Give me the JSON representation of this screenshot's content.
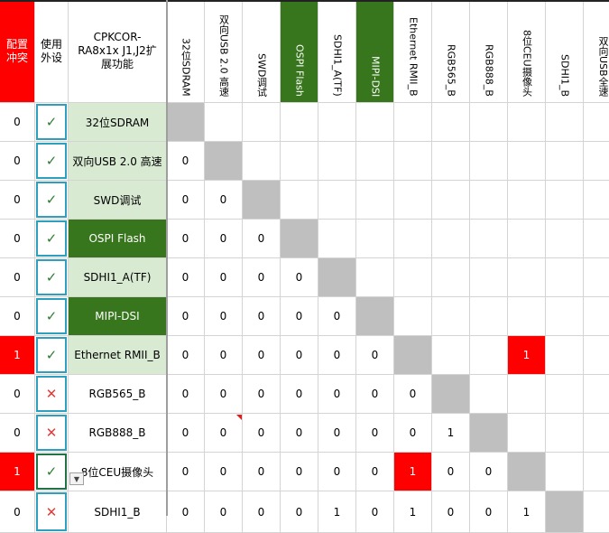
{
  "header": {
    "conflict": "配置冲突",
    "use": "使用外设",
    "function": "CPKCOR-RA8x1x J1,J2扩展功能"
  },
  "columns": [
    "32位SDRAM",
    "双向USB 2.0 高速",
    "SWD调试",
    "OSPI Flash",
    "SDHI1_A(TF)",
    "MIPI-DSI",
    "Ethernet RMII_B",
    "RGB565_B",
    "RGB888_B",
    "8位CEU摄像头",
    "SDHI1_B",
    "双向USB全速"
  ],
  "rows": [
    {
      "conflict": "0",
      "use": "✓",
      "name": "32位SDRAM",
      "cells": [
        "",
        "",
        "",
        "",
        "",
        "",
        "",
        "",
        "",
        "",
        "",
        ""
      ]
    },
    {
      "conflict": "0",
      "use": "✓",
      "name": "双向USB 2.0 高速",
      "cells": [
        "0",
        "",
        "",
        "",
        "",
        "",
        "",
        "",
        "",
        "",
        "",
        ""
      ]
    },
    {
      "conflict": "0",
      "use": "✓",
      "name": "SWD调试",
      "cells": [
        "0",
        "0",
        "",
        "",
        "",
        "",
        "",
        "",
        "",
        "",
        "",
        ""
      ]
    },
    {
      "conflict": "0",
      "use": "✓",
      "name": "OSPI Flash",
      "cells": [
        "0",
        "0",
        "0",
        "",
        "",
        "",
        "",
        "",
        "",
        "",
        "",
        ""
      ]
    },
    {
      "conflict": "0",
      "use": "✓",
      "name": "SDHI1_A(TF)",
      "cells": [
        "0",
        "0",
        "0",
        "0",
        "",
        "",
        "",
        "",
        "",
        "",
        "",
        ""
      ]
    },
    {
      "conflict": "0",
      "use": "✓",
      "name": "MIPI-DSI",
      "cells": [
        "0",
        "0",
        "0",
        "0",
        "0",
        "",
        "",
        "",
        "",
        "",
        "",
        ""
      ]
    },
    {
      "conflict": "1",
      "use": "✓",
      "name": "Ethernet RMII_B",
      "cells": [
        "0",
        "0",
        "0",
        "0",
        "0",
        "0",
        "",
        "",
        "",
        "1",
        "",
        ""
      ]
    },
    {
      "conflict": "0",
      "use": "✕",
      "name": "RGB565_B",
      "cells": [
        "0",
        "0",
        "0",
        "0",
        "0",
        "0",
        "0",
        "",
        "",
        "",
        "",
        ""
      ]
    },
    {
      "conflict": "0",
      "use": "✕",
      "name": "RGB888_B",
      "cells": [
        "0",
        "0",
        "0",
        "0",
        "0",
        "0",
        "0",
        "1",
        "",
        "",
        "",
        ""
      ]
    },
    {
      "conflict": "1",
      "use": "✓",
      "name": "8位CEU摄像头",
      "cells": [
        "0",
        "0",
        "0",
        "0",
        "0",
        "0",
        "1",
        "0",
        "0",
        "",
        "",
        ""
      ]
    },
    {
      "conflict": "0",
      "use": "✕",
      "name": "SDHI1_B",
      "cells": [
        "0",
        "0",
        "0",
        "0",
        "1",
        "0",
        "1",
        "0",
        "0",
        "1",
        "",
        ""
      ]
    }
  ],
  "colors": {
    "red": "#ff0000",
    "green_dark": "#38761d",
    "green_light": "#d9ead3",
    "gray": "#bfbfbf",
    "check": "#2e7d32",
    "cross": "#e53935",
    "cyan_border": "#2f9fbf"
  }
}
